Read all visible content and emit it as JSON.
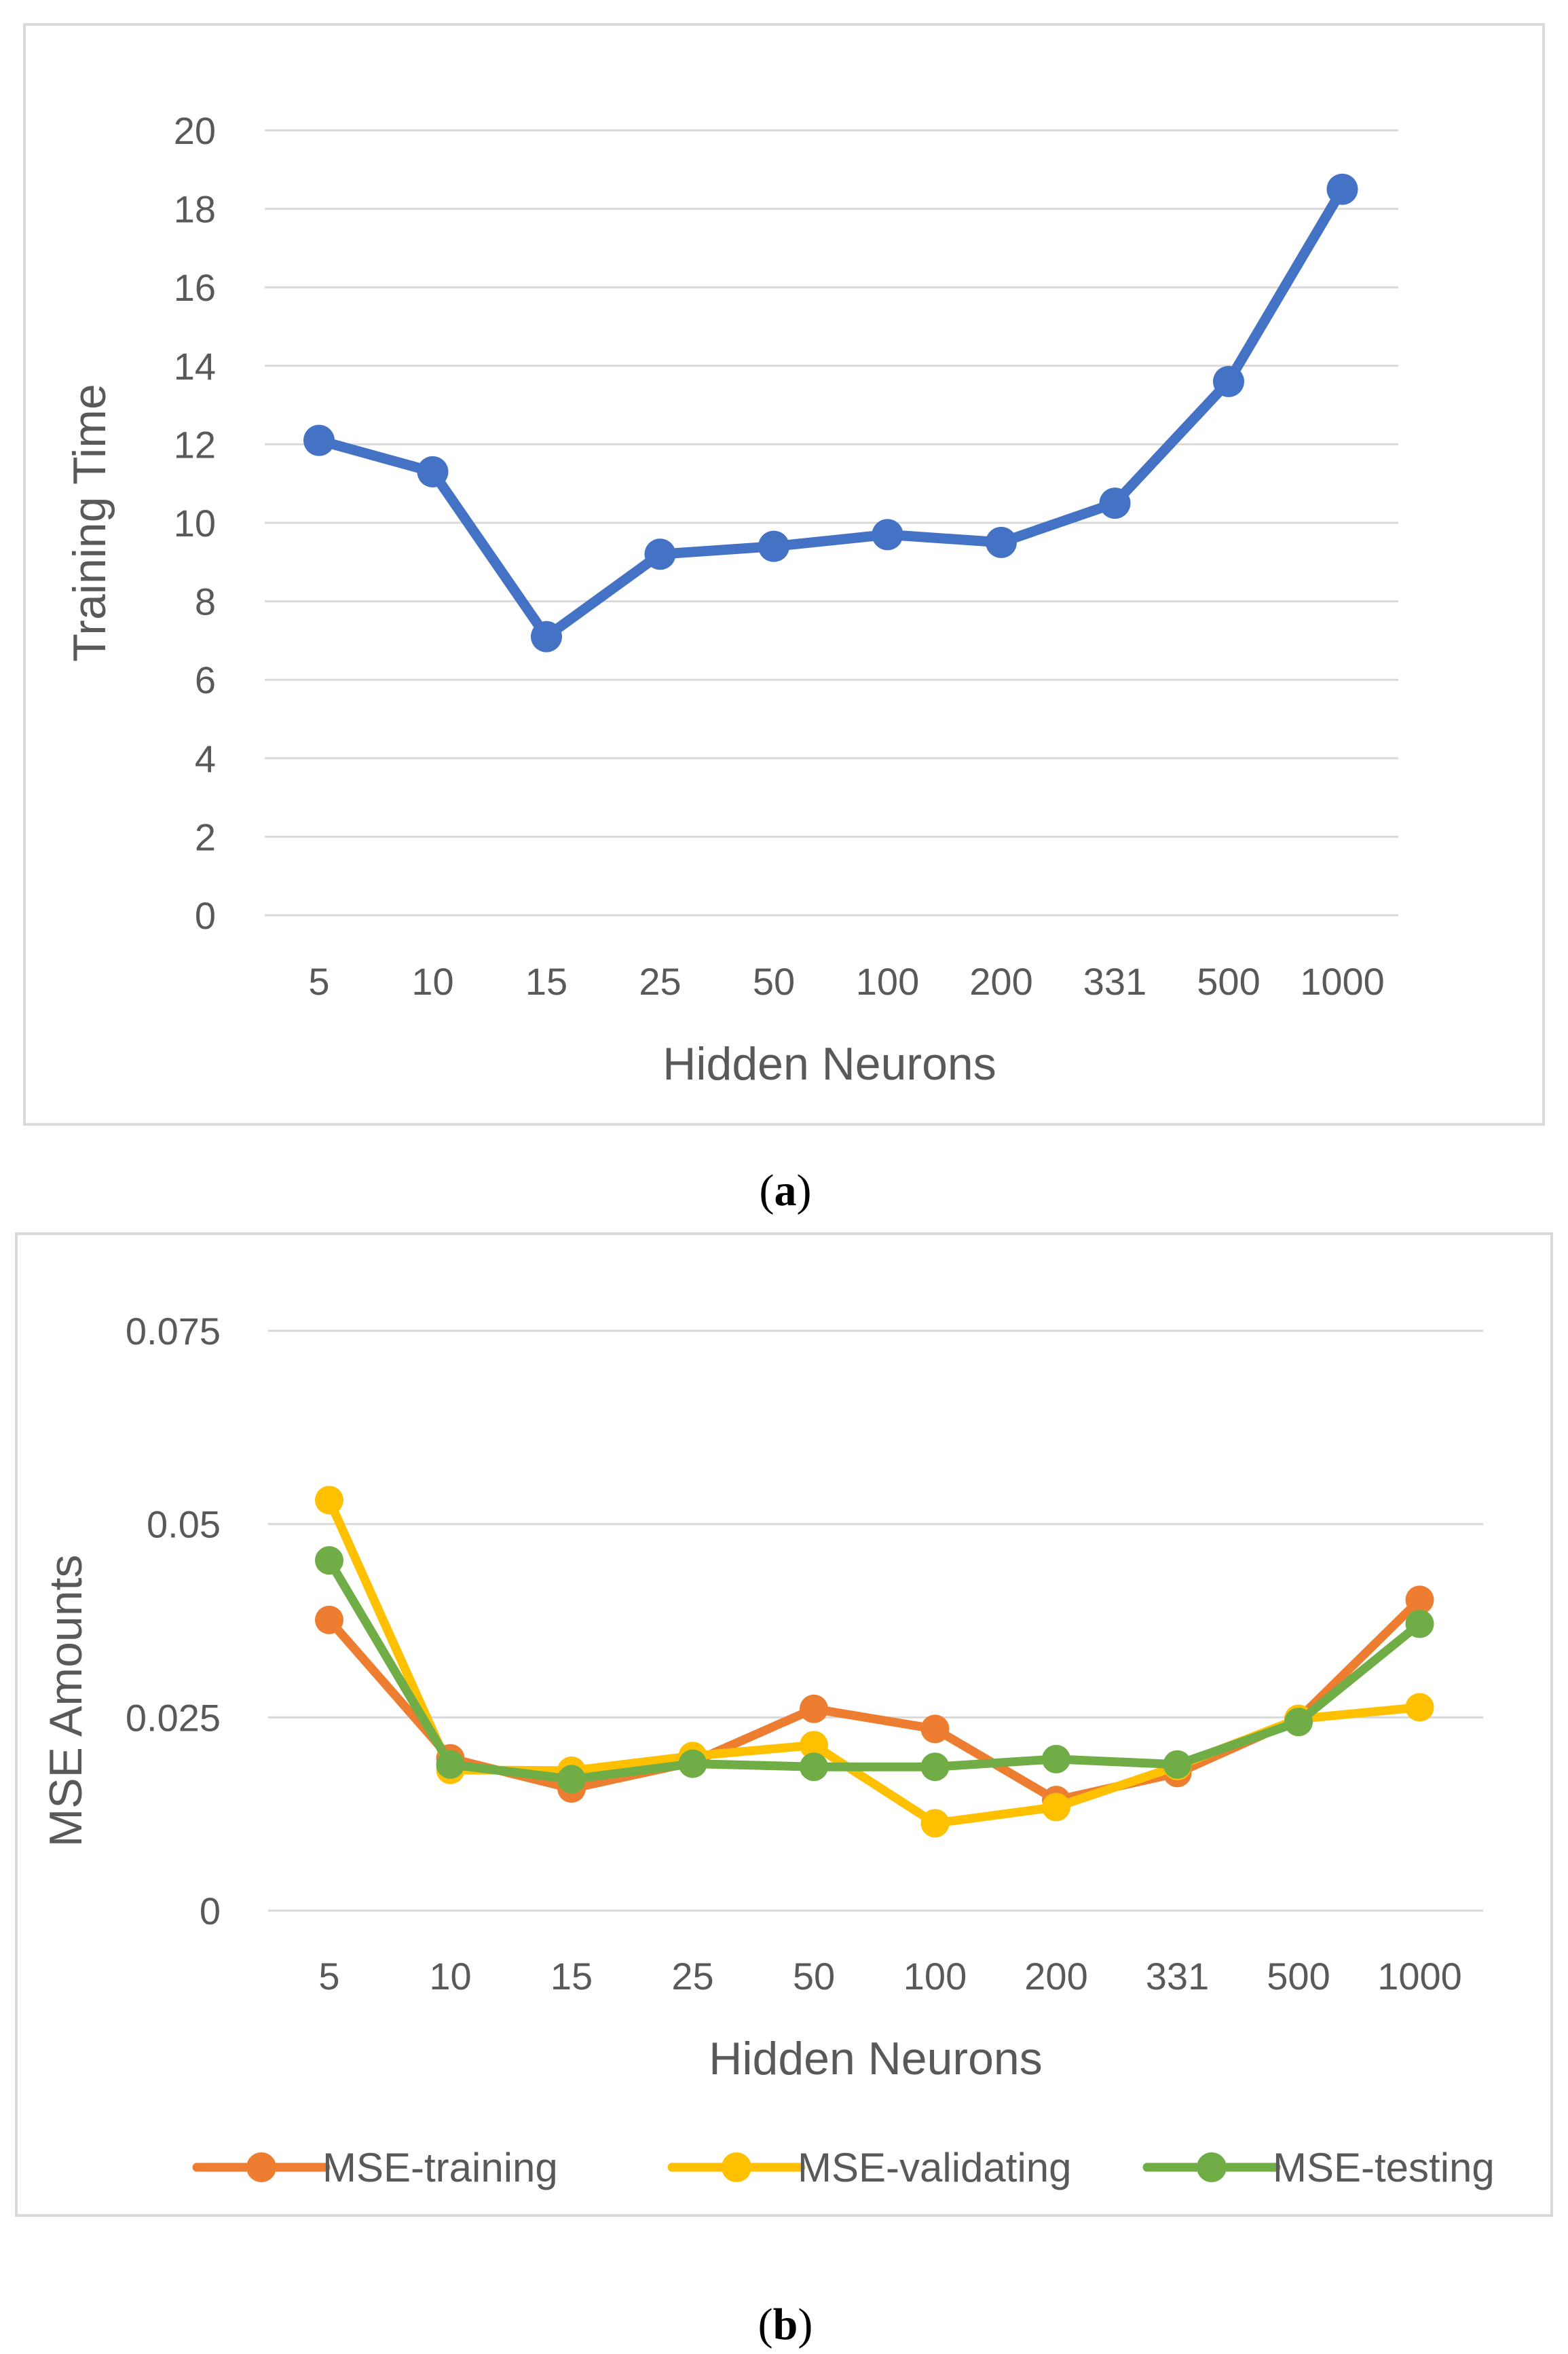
{
  "chart_data": [
    {
      "type": "line",
      "panel_label": "a",
      "categories": [
        "5",
        "10",
        "15",
        "25",
        "50",
        "100",
        "200",
        "331",
        "500",
        "1000"
      ],
      "series": [
        {
          "name": "Training Time",
          "color": "#4472C4",
          "values": [
            12.1,
            11.3,
            7.1,
            9.2,
            9.4,
            9.7,
            9.5,
            10.5,
            13.6,
            18.5
          ]
        }
      ],
      "xlabel": "Hidden Neurons",
      "ylabel": "Training Time",
      "ylim": [
        0,
        20
      ],
      "yticks": [
        0,
        2,
        4,
        6,
        8,
        10,
        12,
        14,
        16,
        18,
        20
      ],
      "grid": true,
      "legend": "none"
    },
    {
      "type": "line",
      "panel_label": "b",
      "categories": [
        "5",
        "10",
        "15",
        "25",
        "50",
        "100",
        "200",
        "331",
        "500",
        "1000"
      ],
      "series": [
        {
          "name": "MSE-training",
          "color": "#ED7D31",
          "values": [
            0.0376,
            0.0197,
            0.0158,
            0.0192,
            0.0261,
            0.0235,
            0.0143,
            0.0178,
            0.0248,
            0.0402
          ]
        },
        {
          "name": "MSE-validating",
          "color": "#FFC000",
          "values": [
            0.0531,
            0.0182,
            0.0181,
            0.02,
            0.0214,
            0.0113,
            0.0134,
            0.0187,
            0.0248,
            0.0263
          ]
        },
        {
          "name": "MSE-testing",
          "color": "#70AD47",
          "values": [
            0.0453,
            0.0189,
            0.017,
            0.019,
            0.0186,
            0.0186,
            0.0196,
            0.0189,
            0.0244,
            0.0371
          ]
        }
      ],
      "xlabel": "Hidden Neurons",
      "ylabel": "MSE Amounts",
      "ylim": [
        0,
        0.075
      ],
      "yticks": [
        "0",
        "0.025",
        "0.05",
        "0.075"
      ],
      "grid": true,
      "legend": "bottom"
    }
  ]
}
